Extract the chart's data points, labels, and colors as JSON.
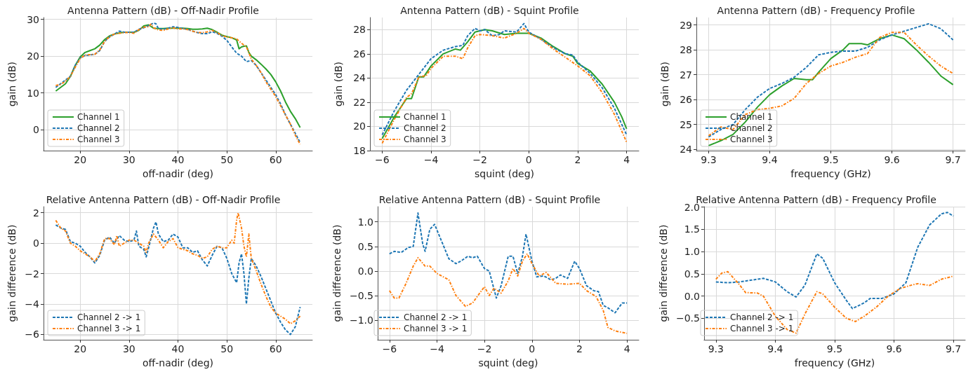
{
  "chart_data": [
    {
      "type": "line",
      "title": "Antenna Pattern (dB) - Off-Nadir Profile",
      "xlabel": "off-nadir (deg)",
      "ylabel": "gain (dB)",
      "xlim": [
        12.5,
        67.5
      ],
      "xticks": [
        20,
        30,
        40,
        50,
        60
      ],
      "ylim": [
        -5.7,
        30.5
      ],
      "yticks": [
        0,
        10,
        20,
        30
      ],
      "grid": true,
      "legend": "bottom left",
      "marker": "none",
      "series": [
        {
          "name": "Channel 1",
          "color": "#2ca02c",
          "line_style": "solid",
          "x": [
            15,
            16,
            17,
            18,
            19,
            20,
            21,
            22,
            23,
            24,
            25,
            26,
            27,
            28,
            29,
            30,
            31,
            32,
            33,
            34,
            35,
            36,
            37,
            38,
            39,
            40,
            41,
            42,
            43,
            44,
            45,
            46,
            47,
            48,
            49,
            50,
            51,
            52,
            52.5,
            53,
            53.5,
            54,
            54.5,
            55,
            56,
            57,
            58,
            59,
            60,
            61,
            62,
            63,
            64,
            65
          ],
          "values": [
            10.5,
            11.5,
            12.5,
            14.5,
            17.5,
            19.8,
            21,
            21.5,
            22,
            23,
            24.5,
            25.5,
            26,
            26.3,
            26.5,
            26.5,
            26.5,
            27,
            28.2,
            28.5,
            27.6,
            27.5,
            27.5,
            27.6,
            27.6,
            27.6,
            27.6,
            27.5,
            27.3,
            27.3,
            27.4,
            27.6,
            27.2,
            26.5,
            25.7,
            25.3,
            25,
            24.4,
            22,
            22.5,
            22.7,
            22.8,
            21,
            20,
            19,
            17.8,
            16.5,
            15,
            13,
            10.5,
            7.5,
            5,
            3,
            0.6
          ]
        },
        {
          "name": "Channel 2",
          "color": "#1f77b4",
          "line_style": "dashed",
          "x": [
            15,
            16,
            17,
            18,
            19,
            20,
            21,
            22,
            23,
            24,
            25,
            26,
            27,
            28,
            29,
            30,
            31,
            32,
            33,
            34,
            35,
            35.5,
            36,
            37,
            38,
            39,
            40,
            41,
            42,
            43,
            44,
            45,
            46,
            47,
            48,
            49,
            50,
            51,
            52,
            53,
            54,
            55,
            56,
            57,
            58,
            59,
            60,
            61,
            62,
            63,
            64,
            65
          ],
          "values": [
            11.5,
            12.5,
            13.5,
            14.5,
            17.5,
            19.5,
            20.2,
            20.3,
            20.5,
            21.5,
            24,
            25.2,
            26,
            26.8,
            26.5,
            26.5,
            26.5,
            27.3,
            27.7,
            28.3,
            29,
            28.8,
            27.5,
            27.3,
            27.6,
            28,
            27.8,
            27.5,
            27.3,
            26.8,
            26.4,
            26.1,
            26.1,
            26.6,
            26.2,
            25.4,
            24.3,
            22.5,
            20.8,
            20,
            18.5,
            18.8,
            17.5,
            15.5,
            13.5,
            11.5,
            9.5,
            7,
            4,
            1.5,
            -1,
            -3.5
          ]
        },
        {
          "name": "Channel 3",
          "color": "#ff7f0e",
          "line_style": "dashdot",
          "x": [
            15,
            16,
            17,
            18,
            19,
            20,
            21,
            22,
            23,
            24,
            25,
            26,
            27,
            28,
            29,
            30,
            31,
            32,
            33,
            34,
            34.5,
            35,
            36,
            37,
            38,
            39,
            40,
            41,
            42,
            43,
            44,
            45,
            46,
            47,
            48,
            49,
            50,
            51,
            52,
            53,
            54,
            54.5,
            55,
            56,
            57,
            58,
            59,
            60,
            61,
            62,
            63,
            64,
            65
          ],
          "values": [
            12,
            12.3,
            13.2,
            14.5,
            17,
            19.3,
            20.3,
            20.4,
            20.5,
            21.7,
            24,
            25.3,
            26,
            26.2,
            26.4,
            26.4,
            26.2,
            27.2,
            27.9,
            28,
            28.7,
            27.7,
            27.1,
            27,
            27.4,
            27.7,
            27.4,
            27.4,
            27.2,
            26.8,
            26.4,
            26.4,
            26.6,
            27,
            26.4,
            25.6,
            25.2,
            25,
            24.7,
            23.5,
            22.5,
            21,
            19.2,
            17.5,
            15.5,
            13,
            11,
            9,
            6.5,
            4,
            1.5,
            -1.5,
            -4
          ]
        }
      ]
    },
    {
      "type": "line",
      "title": "Antenna Pattern (dB) - Squint Profile",
      "xlabel": "squint (deg)",
      "ylabel": "gain (dB)",
      "xlim": [
        -6.5,
        4.5
      ],
      "xticks": [
        {
          "value": -6,
          "label": "−6"
        },
        {
          "value": -4,
          "label": "−4"
        },
        {
          "value": -2,
          "label": "−2"
        },
        0,
        2,
        4
      ],
      "ylim": [
        18,
        29
      ],
      "yticks": [
        18,
        20,
        22,
        24,
        26,
        28
      ],
      "grid": true,
      "legend": "bottom left",
      "marker": "none",
      "series": [
        {
          "name": "Channel 1",
          "color": "#2ca02c",
          "line_style": "solid",
          "x": [
            -6,
            -5.5,
            -5,
            -4.8,
            -4.6,
            -4.5,
            -4.3,
            -4,
            -3.5,
            -3,
            -2.8,
            -2.5,
            -2.2,
            -2,
            -1.8,
            -1.5,
            -1,
            -0.5,
            0,
            0.5,
            1,
            1.5,
            1.8,
            2,
            2.5,
            3,
            3.5,
            3.8,
            4
          ],
          "values": [
            19,
            20.8,
            22.3,
            22.3,
            23.5,
            24.1,
            24.1,
            25,
            26,
            26.4,
            26.3,
            27,
            27.8,
            27.9,
            28,
            27.9,
            27.6,
            27.7,
            27.7,
            27.3,
            26.6,
            26,
            25.8,
            25.2,
            24.6,
            23.5,
            22,
            20.8,
            19.8
          ]
        },
        {
          "name": "Channel 2",
          "color": "#1f77b4",
          "line_style": "dashed",
          "x": [
            -6,
            -5.5,
            -5,
            -4.5,
            -4,
            -3.5,
            -3,
            -2.7,
            -2.5,
            -2.2,
            -2,
            -1.8,
            -1.5,
            -1.2,
            -1,
            -0.5,
            -0.2,
            0,
            0.5,
            1,
            1.5,
            1.8,
            2,
            2.5,
            3,
            3.5,
            4
          ],
          "values": [
            19.3,
            21.3,
            23,
            24.3,
            25.6,
            26.3,
            26.6,
            26.7,
            27.5,
            28.1,
            27.9,
            28,
            27.5,
            27.6,
            27.9,
            27.8,
            28.5,
            27.8,
            27.2,
            26.5,
            26,
            25.9,
            25.3,
            24.4,
            23.2,
            21.5,
            19.3
          ]
        },
        {
          "name": "Channel 3",
          "color": "#ff7f0e",
          "line_style": "dashdot",
          "x": [
            -6,
            -5.5,
            -5,
            -4.8,
            -4.6,
            -4.5,
            -4.2,
            -4,
            -3.5,
            -3,
            -2.7,
            -2.5,
            -2.2,
            -2,
            -1.5,
            -1,
            -0.5,
            -0.2,
            0,
            0.5,
            1,
            1.5,
            2,
            2.5,
            3,
            3.5,
            4
          ],
          "values": [
            18.6,
            20.6,
            22.4,
            22.7,
            23.6,
            24.1,
            24.2,
            24.8,
            25.8,
            25.8,
            25.6,
            26.5,
            27.5,
            27.6,
            27.5,
            27.3,
            27.7,
            28.1,
            27.7,
            27.2,
            26.4,
            25.7,
            25,
            24.2,
            22.8,
            21,
            18.7
          ]
        }
      ]
    },
    {
      "type": "line",
      "title": "Antenna Pattern (dB) - Frequency Profile",
      "xlabel": "frequency (GHz)",
      "ylabel": "gain (dB)",
      "xlim": [
        9.28,
        9.72
      ],
      "xticks": [
        9.3,
        9.4,
        9.5,
        9.6,
        9.7
      ],
      "ylim": [
        23.95,
        29.3
      ],
      "yticks": [
        24,
        25,
        26,
        27,
        28,
        29
      ],
      "grid": true,
      "legend": "bottom left",
      "marker": "none",
      "series": [
        {
          "name": "Channel 1",
          "color": "#2ca02c",
          "line_style": "solid",
          "x": [
            9.3,
            9.32,
            9.34,
            9.36,
            9.38,
            9.4,
            9.42,
            9.44,
            9.46,
            9.47,
            9.48,
            9.5,
            9.52,
            9.53,
            9.55,
            9.56,
            9.58,
            9.6,
            9.62,
            9.64,
            9.66,
            9.68,
            9.7
          ],
          "values": [
            24.15,
            24.35,
            24.6,
            25.1,
            25.7,
            26.2,
            26.55,
            26.85,
            26.8,
            26.8,
            27.1,
            27.65,
            28.0,
            28.25,
            28.25,
            28.2,
            28.45,
            28.6,
            28.45,
            28.0,
            27.5,
            26.95,
            26.6
          ]
        },
        {
          "name": "Channel 2",
          "color": "#1f77b4",
          "line_style": "dashed",
          "x": [
            9.3,
            9.32,
            9.34,
            9.36,
            9.38,
            9.4,
            9.42,
            9.44,
            9.46,
            9.48,
            9.5,
            9.52,
            9.54,
            9.56,
            9.58,
            9.6,
            9.62,
            9.64,
            9.66,
            9.68,
            9.7
          ],
          "values": [
            24.5,
            24.8,
            25.0,
            25.6,
            26.1,
            26.45,
            26.65,
            26.9,
            27.3,
            27.8,
            27.9,
            27.95,
            27.95,
            28.1,
            28.4,
            28.6,
            28.75,
            28.9,
            29.05,
            28.85,
            28.4
          ]
        },
        {
          "name": "Channel 3",
          "color": "#ff7f0e",
          "line_style": "dashdot",
          "x": [
            9.3,
            9.32,
            9.34,
            9.36,
            9.38,
            9.4,
            9.42,
            9.44,
            9.46,
            9.48,
            9.5,
            9.52,
            9.54,
            9.56,
            9.58,
            9.6,
            9.62,
            9.64,
            9.66,
            9.68,
            9.7
          ],
          "values": [
            24.55,
            24.9,
            24.8,
            25.4,
            25.6,
            25.65,
            25.75,
            26.05,
            26.65,
            27.05,
            27.35,
            27.5,
            27.7,
            27.85,
            28.5,
            28.7,
            28.7,
            28.2,
            27.75,
            27.35,
            27.05
          ]
        }
      ]
    },
    {
      "type": "line",
      "title": "Relative Antenna Pattern (dB) - Off-Nadir Profile",
      "xlabel": "off-nadir (deg)",
      "ylabel": "gain difference (dB)",
      "xlim": [
        12.5,
        67.5
      ],
      "xticks": [
        20,
        30,
        40,
        50,
        60
      ],
      "ylim": [
        -6.35,
        2.4
      ],
      "yticks": [
        {
          "value": -6,
          "label": "−6"
        },
        {
          "value": -4,
          "label": "−4"
        },
        {
          "value": -2,
          "label": "−2"
        },
        0,
        2
      ],
      "grid": true,
      "legend": "bottom left",
      "marker": "none",
      "series": [
        {
          "name": "Channel 2 -> 1",
          "color": "#1f77b4",
          "line_style": "dashed",
          "x": [
            15,
            16,
            17,
            18,
            19,
            20,
            21,
            22,
            23,
            24,
            25,
            26,
            27,
            28,
            29,
            30,
            31,
            31.5,
            32,
            33,
            33.5,
            34,
            35,
            35.5,
            36,
            37,
            38,
            39,
            40,
            41,
            42,
            43,
            44,
            45,
            46,
            47,
            48,
            49,
            50,
            51,
            52,
            52.5,
            53,
            53.5,
            54,
            54.5,
            55,
            56,
            57,
            58,
            59,
            60,
            61,
            62,
            63,
            64,
            65
          ],
          "values": [
            1.2,
            1.0,
            0.9,
            0.1,
            0.0,
            -0.2,
            -0.6,
            -0.9,
            -1.3,
            -0.8,
            0.2,
            0.4,
            0,
            0.5,
            0.2,
            0.1,
            0.2,
            0.8,
            -0.2,
            -0.4,
            -0.9,
            -0.3,
            1.0,
            1.4,
            0.6,
            0.1,
            0.2,
            0.6,
            0.4,
            -0.3,
            -0.3,
            -0.6,
            -0.5,
            -1.1,
            -1.5,
            -0.8,
            -0.2,
            -0.3,
            -1,
            -2,
            -2.6,
            -1.3,
            -0.7,
            -2,
            -4,
            -2.3,
            -1.0,
            -1.5,
            -2.2,
            -3,
            -3.8,
            -4.6,
            -5.2,
            -5.7,
            -6.0,
            -5.5,
            -4.2
          ]
        },
        {
          "name": "Channel 3 -> 1",
          "color": "#ff7f0e",
          "line_style": "dashdot",
          "x": [
            15,
            16,
            17,
            18,
            19,
            20,
            21,
            22,
            23,
            24,
            25,
            26,
            27,
            27.5,
            28,
            29,
            30,
            31,
            32,
            33,
            33.5,
            34,
            35,
            36,
            37,
            38,
            39,
            40,
            41,
            42,
            43,
            44,
            45,
            46,
            47,
            48,
            49,
            50,
            51,
            51.5,
            52,
            52.3,
            53,
            53.5,
            54,
            54.5,
            55,
            56,
            57,
            58,
            59,
            60,
            61,
            62,
            63,
            64,
            65
          ],
          "values": [
            1.5,
            1.0,
            0.8,
            0.0,
            -0.2,
            -0.5,
            -0.7,
            -0.9,
            -1.2,
            -0.7,
            0.3,
            0.3,
            -0.1,
            0.5,
            -0.2,
            0,
            0.2,
            0.2,
            0,
            -0.2,
            -0.6,
            0,
            0.6,
            0.2,
            -0.3,
            0.1,
            0.3,
            -0.3,
            -0.4,
            -0.5,
            -0.7,
            -0.8,
            -1,
            -0.9,
            -0.4,
            -0.2,
            -0.3,
            -0.3,
            0.2,
            0,
            1.5,
            2.0,
            1.0,
            -0.2,
            -0.9,
            0.6,
            -1.0,
            -1.8,
            -2.7,
            -3.5,
            -4.2,
            -4.6,
            -4.8,
            -5.0,
            -5.3,
            -5.1,
            -4.8
          ]
        }
      ]
    },
    {
      "type": "line",
      "title": "Relative Antenna Pattern (dB) - Squint Profile",
      "xlabel": "squint (deg)",
      "ylabel": "gain difference (dB)",
      "xlim": [
        -6.5,
        4.5
      ],
      "xticks": [
        {
          "value": -6,
          "label": "−6"
        },
        {
          "value": -4,
          "label": "−4"
        },
        {
          "value": -2,
          "label": "−2"
        },
        0,
        2,
        4
      ],
      "ylim": [
        -1.4,
        1.31
      ],
      "yticks": [
        {
          "value": -1,
          "label": "−1.0"
        },
        {
          "value": -0.5,
          "label": "−0.5"
        },
        {
          "value": 0,
          "label": "0.0"
        },
        0.5,
        {
          "value": 1,
          "label": "1.0"
        }
      ],
      "grid": true,
      "legend": "bottom left",
      "marker": "none",
      "series": [
        {
          "name": "Channel 2 -> 1",
          "color": "#1f77b4",
          "line_style": "dashed",
          "x": [
            -6,
            -5.8,
            -5.5,
            -5.2,
            -5,
            -4.8,
            -4.6,
            -4.5,
            -4.3,
            -4.1,
            -3.8,
            -3.5,
            -3.2,
            -3,
            -2.7,
            -2.5,
            -2.3,
            -2,
            -1.8,
            -1.5,
            -1.3,
            -1,
            -0.8,
            -0.6,
            -0.4,
            -0.25,
            0,
            0.2,
            0.5,
            0.8,
            1,
            1.2,
            1.5,
            1.8,
            2,
            2.3,
            2.6,
            2.8,
            3,
            3.2,
            3.5,
            3.8,
            4
          ],
          "values": [
            0.35,
            0.4,
            0.38,
            0.48,
            0.5,
            1.18,
            0.55,
            0.4,
            0.85,
            0.95,
            0.6,
            0.25,
            0.15,
            0.2,
            0.3,
            0.27,
            0.3,
            0.05,
            0.0,
            -0.55,
            -0.3,
            0.3,
            0.3,
            -0.05,
            0.3,
            0.75,
            0.2,
            -0.12,
            -0.1,
            -0.18,
            -0.15,
            -0.08,
            -0.15,
            0.2,
            0.05,
            -0.3,
            -0.4,
            -0.42,
            -0.7,
            -0.75,
            -0.85,
            -0.65,
            -0.65
          ]
        },
        {
          "name": "Channel 3 -> 1",
          "color": "#ff7f0e",
          "line_style": "dashdot",
          "x": [
            -6,
            -5.8,
            -5.6,
            -5.3,
            -5,
            -4.8,
            -4.5,
            -4.3,
            -4,
            -3.5,
            -3.2,
            -2.8,
            -2.5,
            -2.2,
            -2,
            -1.8,
            -1.6,
            -1.3,
            -1,
            -0.8,
            -0.6,
            -0.4,
            -0.2,
            0,
            0.3,
            0.6,
            1,
            1.5,
            2,
            2.3,
            2.7,
            3,
            3.2,
            3.5,
            4
          ],
          "values": [
            -0.4,
            -0.55,
            -0.55,
            -0.25,
            0.1,
            0.27,
            0.1,
            0.1,
            -0.05,
            -0.18,
            -0.5,
            -0.72,
            -0.65,
            -0.45,
            -0.32,
            -0.5,
            -0.35,
            -0.45,
            -0.2,
            0.05,
            -0.1,
            0.2,
            0.35,
            0.15,
            -0.1,
            -0.03,
            -0.25,
            -0.27,
            -0.25,
            -0.4,
            -0.52,
            -0.8,
            -1.15,
            -1.22,
            -1.27
          ]
        }
      ]
    },
    {
      "type": "line",
      "title": "Relative Antenna Pattern (dB) - Frequency Profile",
      "xlabel": "frequency (GHz)",
      "ylabel": "gain difference (dB)",
      "xlim": [
        9.28,
        9.72
      ],
      "xticks": [
        9.3,
        9.4,
        9.5,
        9.6,
        9.7
      ],
      "ylim": [
        -0.98,
        2.01
      ],
      "yticks": [
        {
          "value": -0.5,
          "label": "−0.5"
        },
        {
          "value": 0,
          "label": "0.0"
        },
        0.5,
        {
          "value": 1,
          "label": "1.0"
        },
        1.5,
        {
          "value": 2,
          "label": "2.0"
        }
      ],
      "grid": true,
      "legend": "bottom left",
      "marker": "none",
      "series": [
        {
          "name": "Channel 2 -> 1",
          "color": "#1f77b4",
          "line_style": "dashed",
          "x": [
            9.3,
            9.32,
            9.34,
            9.36,
            9.38,
            9.4,
            9.42,
            9.435,
            9.45,
            9.47,
            9.48,
            9.5,
            9.52,
            9.53,
            9.55,
            9.56,
            9.58,
            9.6,
            9.62,
            9.64,
            9.66,
            9.68,
            9.69,
            9.7
          ],
          "values": [
            0.32,
            0.3,
            0.32,
            0.36,
            0.4,
            0.32,
            0.1,
            -0.02,
            0.25,
            0.95,
            0.85,
            0.3,
            -0.1,
            -0.28,
            -0.15,
            -0.05,
            -0.05,
            0.05,
            0.3,
            1.1,
            1.6,
            1.85,
            1.88,
            1.8
          ]
        },
        {
          "name": "Channel 3 -> 1",
          "color": "#ff7f0e",
          "line_style": "dashdot",
          "x": [
            9.3,
            9.31,
            9.32,
            9.34,
            9.35,
            9.37,
            9.38,
            9.4,
            9.42,
            9.435,
            9.45,
            9.47,
            9.48,
            9.5,
            9.52,
            9.535,
            9.55,
            9.57,
            9.59,
            9.61,
            9.63,
            9.64,
            9.66,
            9.68,
            9.7
          ],
          "values": [
            0.38,
            0.52,
            0.55,
            0.25,
            0.08,
            0.07,
            0,
            -0.45,
            -0.75,
            -0.83,
            -0.4,
            0.1,
            0.05,
            -0.25,
            -0.5,
            -0.57,
            -0.45,
            -0.25,
            0.0,
            0.17,
            0.25,
            0.28,
            0.24,
            0.38,
            0.45
          ]
        }
      ]
    }
  ]
}
